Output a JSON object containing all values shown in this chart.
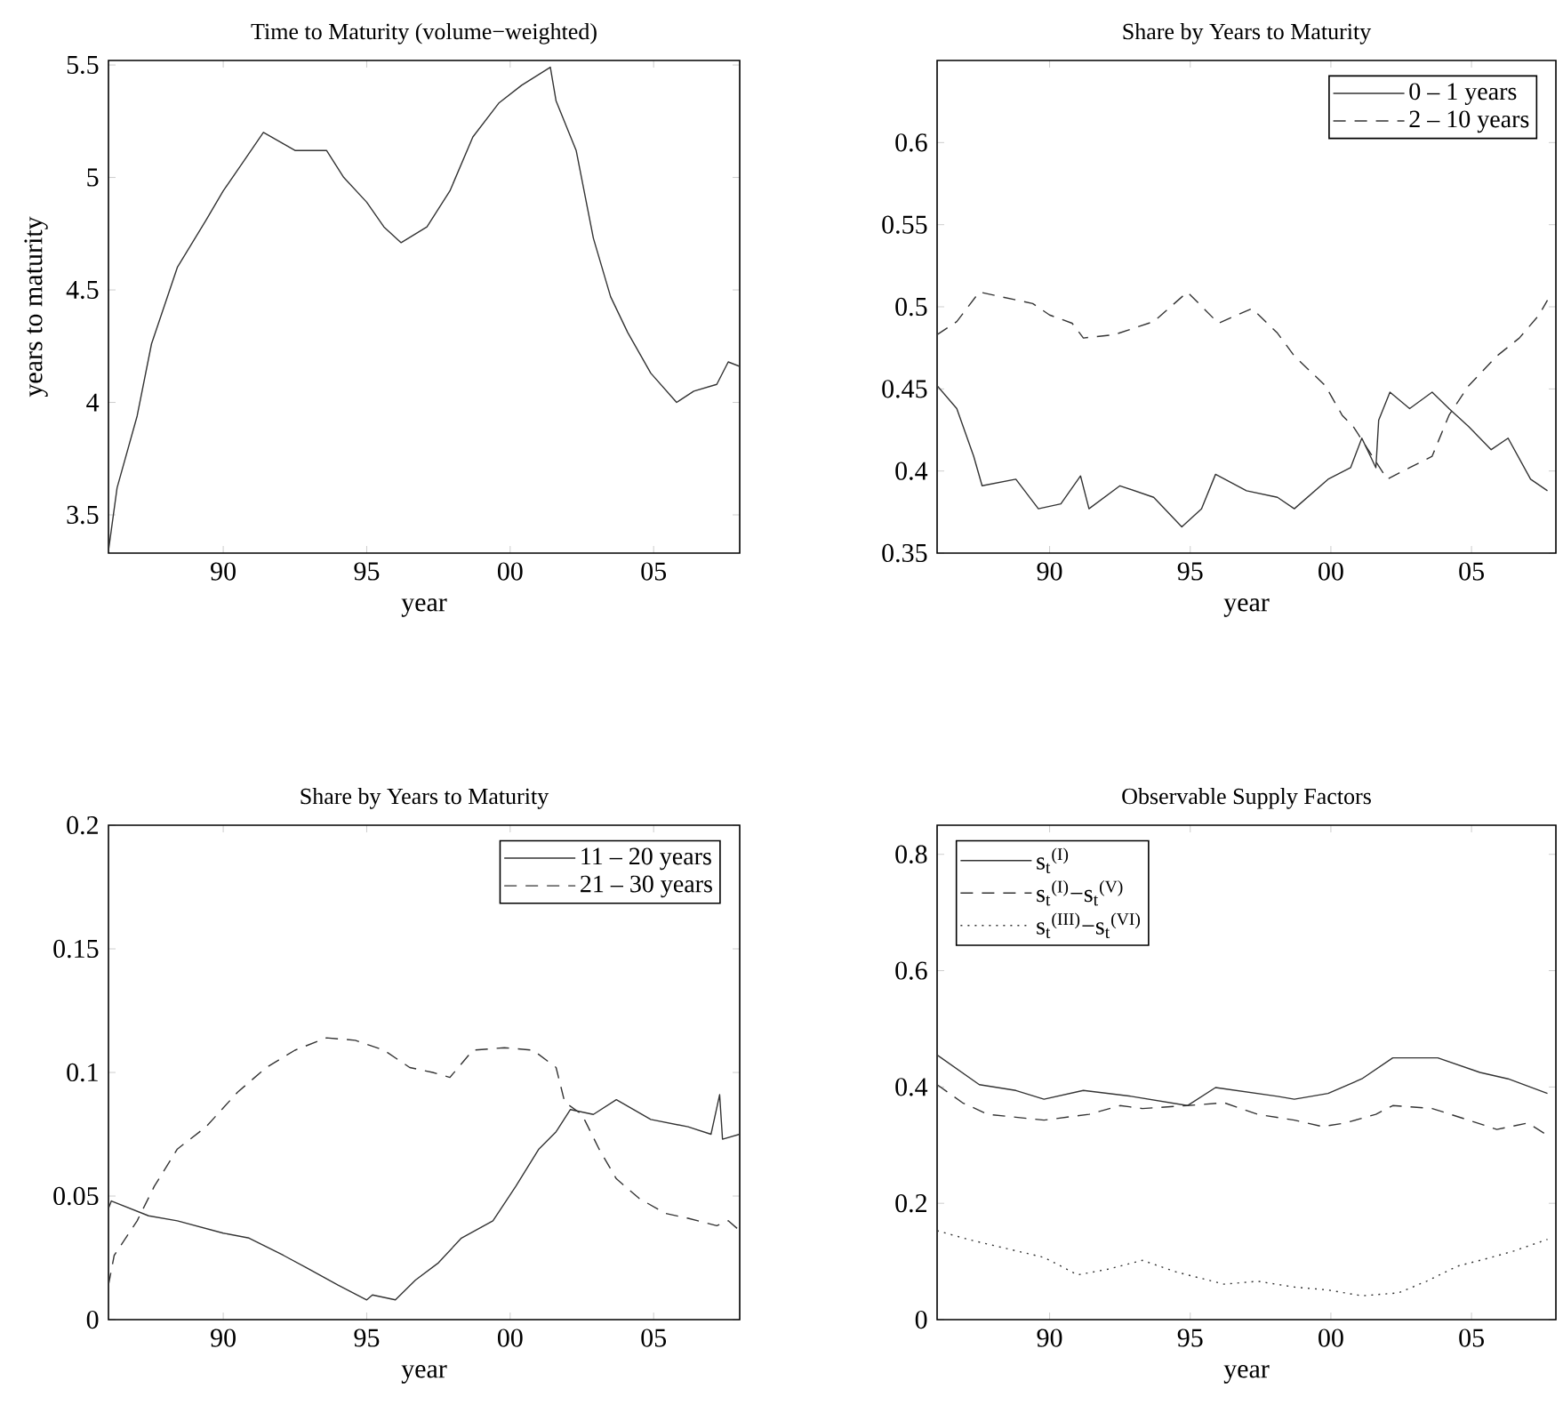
{
  "chart_data": [
    {
      "type": "line",
      "title": "Time to Maturity (volume−weighted)",
      "xlabel": "year",
      "ylabel": "years to maturity",
      "xlim": [
        1986,
        2008
      ],
      "ylim": [
        3.33,
        5.52
      ],
      "xticks": [
        {
          "value": 1990,
          "label": "90"
        },
        {
          "value": 1995,
          "label": "95"
        },
        {
          "value": 2000,
          "label": "00"
        },
        {
          "value": 2005,
          "label": "05"
        }
      ],
      "yticks": [
        3.5,
        4,
        4.5,
        5,
        5.5
      ],
      "series": [
        {
          "color": "#333333",
          "line_style": "solid",
          "x": [
            1986,
            1986.3,
            1987.0,
            1987.5,
            1988.4,
            1989.4,
            1990,
            1990.7,
            1991.4,
            1992.5,
            1993.6,
            1994.2,
            1995,
            1995.6,
            1996.2,
            1997.1,
            1997.9,
            1998.7,
            1999.6,
            2000.4,
            2001.4,
            2001.6,
            2002.3,
            2002.9,
            2003.5,
            2004.1,
            2004.9,
            2005.8,
            2006.4,
            2007.2,
            2007.6,
            2008
          ],
          "values": [
            3.34,
            3.62,
            3.94,
            4.26,
            4.6,
            4.81,
            4.94,
            5.07,
            5.2,
            5.12,
            5.12,
            5.0,
            4.89,
            4.78,
            4.71,
            4.78,
            4.94,
            5.18,
            5.33,
            5.41,
            5.49,
            5.34,
            5.12,
            4.73,
            4.47,
            4.31,
            4.13,
            4.0,
            4.05,
            4.08,
            4.18,
            4.16
          ]
        }
      ]
    },
    {
      "type": "line",
      "title": "Share by Years to Maturity",
      "xlabel": "year",
      "xlim": [
        1986,
        2008
      ],
      "ylim": [
        0.35,
        0.65
      ],
      "legend": "top right",
      "xticks": [
        {
          "value": 1990,
          "label": "90"
        },
        {
          "value": 1995,
          "label": "95"
        },
        {
          "value": 2000,
          "label": "00"
        },
        {
          "value": 2005,
          "label": "05"
        }
      ],
      "yticks": [
        0.35,
        0.4,
        0.45,
        0.5,
        0.55,
        0.6
      ],
      "series": [
        {
          "name": "0 – 1 years",
          "color": "#333333",
          "line_style": "solid",
          "x": [
            1986,
            1986.7,
            1987.3,
            1987.6,
            1988.8,
            1989.6,
            1990.4,
            1991.1,
            1991.4,
            1992.5,
            1993.7,
            1994.7,
            1995.4,
            1995.9,
            1997.0,
            1998.1,
            1998.7,
            1999.9,
            2000.7,
            2001.1,
            2001.6,
            2001.7,
            2002.1,
            2002.8,
            2003.6,
            2004.2,
            2004.9,
            2005.7,
            2006.3,
            2007.1,
            2007.7
          ],
          "values": [
            0.452,
            0.438,
            0.409,
            0.391,
            0.395,
            0.377,
            0.38,
            0.397,
            0.377,
            0.391,
            0.384,
            0.366,
            0.377,
            0.398,
            0.388,
            0.384,
            0.377,
            0.395,
            0.402,
            0.42,
            0.402,
            0.431,
            0.448,
            0.438,
            0.448,
            0.438,
            0.427,
            0.413,
            0.42,
            0.395,
            0.388
          ]
        },
        {
          "name": "2 – 10 years",
          "color": "#333333",
          "line_style": "dashed",
          "x": [
            1986,
            1986.7,
            1987.5,
            1988.3,
            1989.4,
            1990,
            1990.8,
            1991.2,
            1992.3,
            1993.7,
            1994.9,
            1996,
            1997.2,
            1998.1,
            1998.7,
            1999.8,
            2000.4,
            2000.8,
            2002.0,
            2002.8,
            2003.6,
            2004.2,
            2004.9,
            2005.9,
            2006.7,
            2007.4,
            2007.7
          ],
          "values": [
            0.483,
            0.491,
            0.509,
            0.506,
            0.502,
            0.495,
            0.49,
            0.481,
            0.483,
            0.491,
            0.509,
            0.49,
            0.499,
            0.484,
            0.47,
            0.452,
            0.434,
            0.427,
            0.395,
            0.402,
            0.409,
            0.434,
            0.452,
            0.47,
            0.481,
            0.495,
            0.504
          ]
        }
      ]
    },
    {
      "type": "line",
      "title": "Share by Years to Maturity",
      "xlabel": "year",
      "xlim": [
        1986,
        2008
      ],
      "ylim": [
        0,
        0.2
      ],
      "legend": "top right",
      "xticks": [
        {
          "value": 1990,
          "label": "90"
        },
        {
          "value": 1995,
          "label": "95"
        },
        {
          "value": 2000,
          "label": "00"
        },
        {
          "value": 2005,
          "label": "05"
        }
      ],
      "yticks": [
        0,
        0.05,
        0.1,
        0.15,
        0.2
      ],
      "series": [
        {
          "name": "11 – 20 years",
          "color": "#333333",
          "line_style": "solid",
          "x": [
            1986,
            1986.1,
            1987.4,
            1988.4,
            1990,
            1990.9,
            1992.1,
            1992.9,
            1994,
            1995,
            1995.2,
            1996,
            1996.7,
            1997.5,
            1998.3,
            1999.4,
            2000.2,
            2001,
            2001.6,
            2002.1,
            2002.9,
            2003.7,
            2004.9,
            2006.2,
            2007,
            2007.3,
            2007.4,
            2008
          ],
          "values": [
            0.045,
            0.048,
            0.042,
            0.04,
            0.035,
            0.033,
            0.026,
            0.021,
            0.014,
            0.008,
            0.01,
            0.008,
            0.016,
            0.023,
            0.033,
            0.04,
            0.054,
            0.069,
            0.076,
            0.085,
            0.083,
            0.089,
            0.081,
            0.078,
            0.075,
            0.091,
            0.073,
            0.075
          ]
        },
        {
          "name": "21 – 30 years",
          "color": "#333333",
          "line_style": "dashed",
          "x": [
            1986,
            1986.2,
            1987,
            1987.6,
            1988.4,
            1989.4,
            1990.5,
            1991.5,
            1992.5,
            1993.6,
            1994.6,
            1995.6,
            1996.5,
            1997.3,
            1997.9,
            1998.7,
            1999.8,
            2000.8,
            2001.6,
            2001.9,
            2002.5,
            2003.1,
            2003.7,
            2004.5,
            2005.4,
            2006.2,
            2007.2,
            2007.6,
            2008
          ],
          "values": [
            0.014,
            0.026,
            0.04,
            0.054,
            0.069,
            0.078,
            0.092,
            0.102,
            0.109,
            0.114,
            0.113,
            0.109,
            0.102,
            0.1,
            0.098,
            0.109,
            0.11,
            0.109,
            0.102,
            0.088,
            0.083,
            0.069,
            0.057,
            0.049,
            0.043,
            0.041,
            0.038,
            0.04,
            0.036
          ]
        }
      ]
    },
    {
      "type": "line",
      "title": "Observable Supply Factors",
      "xlabel": "year",
      "xlim": [
        1986,
        2008
      ],
      "ylim": [
        0,
        0.85
      ],
      "legend": "top left",
      "xticks": [
        {
          "value": 1990,
          "label": "90"
        },
        {
          "value": 1995,
          "label": "95"
        },
        {
          "value": 2000,
          "label": "00"
        },
        {
          "value": 2005,
          "label": "05"
        }
      ],
      "yticks": [
        0,
        0.2,
        0.4,
        0.6,
        0.8
      ],
      "series": [
        {
          "name": "s$_{t}$$^{(I)}$",
          "color": "#333333",
          "line_style": "solid",
          "x": [
            1986,
            1987.5,
            1988.8,
            1989.8,
            1991.2,
            1992.9,
            1994.9,
            1995.9,
            1998.1,
            1998.7,
            1999.9,
            2001.1,
            2002.2,
            2003.8,
            2005.3,
            2006.3,
            2007.7
          ],
          "values": [
            0.455,
            0.404,
            0.394,
            0.379,
            0.394,
            0.384,
            0.368,
            0.399,
            0.384,
            0.379,
            0.389,
            0.414,
            0.45,
            0.45,
            0.425,
            0.414,
            0.389
          ]
        },
        {
          "name": "s$_{t}$$^{(I)}$−s$_{t}$$^{(V)}$",
          "color": "#333333",
          "line_style": "dashed",
          "x": [
            1986,
            1986.9,
            1987.8,
            1988.8,
            1989.8,
            1991.4,
            1992.5,
            1993.3,
            1994.9,
            1996.2,
            1997.4,
            1998.7,
            1999.7,
            2000.5,
            2001.6,
            2002.2,
            2003.6,
            2004.9,
            2005.9,
            2007,
            2007.7
          ],
          "values": [
            0.404,
            0.373,
            0.353,
            0.348,
            0.343,
            0.353,
            0.368,
            0.363,
            0.368,
            0.373,
            0.353,
            0.343,
            0.332,
            0.338,
            0.353,
            0.368,
            0.363,
            0.343,
            0.327,
            0.338,
            0.317
          ]
        },
        {
          "name": "s$_{t}$$^{(III)}$−s$_{t}$$^{(VI)}$",
          "color": "#333333",
          "line_style": "dotted",
          "x": [
            1986,
            1987.1,
            1988.4,
            1989.8,
            1991,
            1992.1,
            1993.3,
            1994.5,
            1996.2,
            1997.4,
            1998.7,
            1999.9,
            2001.1,
            2002.4,
            2003.4,
            2004.5,
            2005.7,
            2006.5,
            2007.7
          ],
          "values": [
            0.153,
            0.138,
            0.123,
            0.107,
            0.077,
            0.087,
            0.102,
            0.082,
            0.061,
            0.066,
            0.056,
            0.051,
            0.041,
            0.046,
            0.066,
            0.092,
            0.107,
            0.118,
            0.138
          ]
        }
      ]
    }
  ]
}
